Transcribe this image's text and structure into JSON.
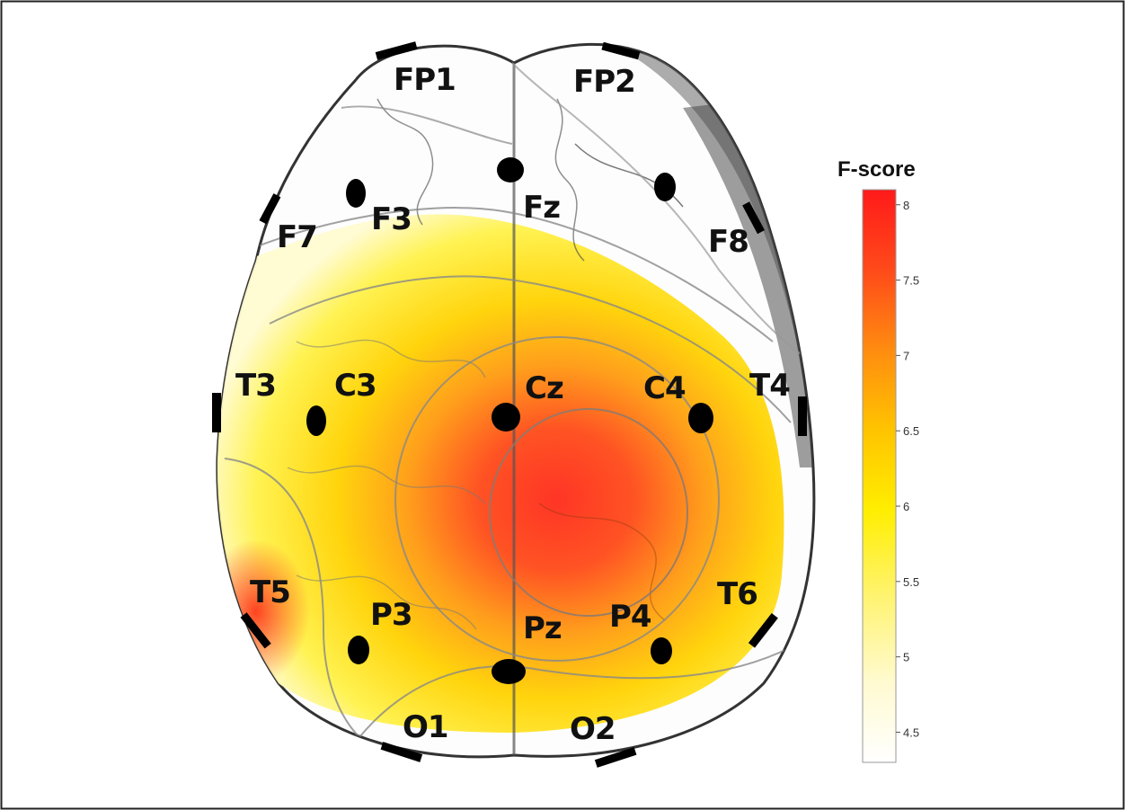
{
  "electrodes": [
    {
      "id": "fp1",
      "label": "FP1",
      "has_dot": false
    },
    {
      "id": "fp2",
      "label": "FP2",
      "has_dot": false
    },
    {
      "id": "f7",
      "label": "F7",
      "has_dot": false
    },
    {
      "id": "f3",
      "label": "F3",
      "has_dot": true
    },
    {
      "id": "fz",
      "label": "Fz",
      "has_dot": true
    },
    {
      "id": "f4",
      "label": "",
      "has_dot": true
    },
    {
      "id": "f8",
      "label": "F8",
      "has_dot": false
    },
    {
      "id": "t3",
      "label": "T3",
      "has_dot": false
    },
    {
      "id": "c3",
      "label": "C3",
      "has_dot": true
    },
    {
      "id": "cz",
      "label": "Cz",
      "has_dot": true
    },
    {
      "id": "c4",
      "label": "C4",
      "has_dot": true
    },
    {
      "id": "t4",
      "label": "T4",
      "has_dot": false
    },
    {
      "id": "t5",
      "label": "T5",
      "has_dot": false
    },
    {
      "id": "p3",
      "label": "P3",
      "has_dot": true
    },
    {
      "id": "pz",
      "label": "Pz",
      "has_dot": true
    },
    {
      "id": "p4",
      "label": "P4",
      "has_dot": true
    },
    {
      "id": "t6",
      "label": "T6",
      "has_dot": false
    },
    {
      "id": "o1",
      "label": "O1",
      "has_dot": false
    },
    {
      "id": "o2",
      "label": "O2",
      "has_dot": false
    }
  ],
  "colorbar": {
    "title": "F-score",
    "min": 4.3,
    "max": 8.1,
    "ticks": [
      "4.5",
      "5",
      "5.5",
      "6",
      "6.5",
      "7",
      "7.5",
      "8"
    ],
    "colors": [
      "#ffffff",
      "#fff6b0",
      "#fff200",
      "#ffcc00",
      "#ff9900",
      "#ff6a10",
      "#ff3a20",
      "#ff1a1a"
    ]
  }
}
